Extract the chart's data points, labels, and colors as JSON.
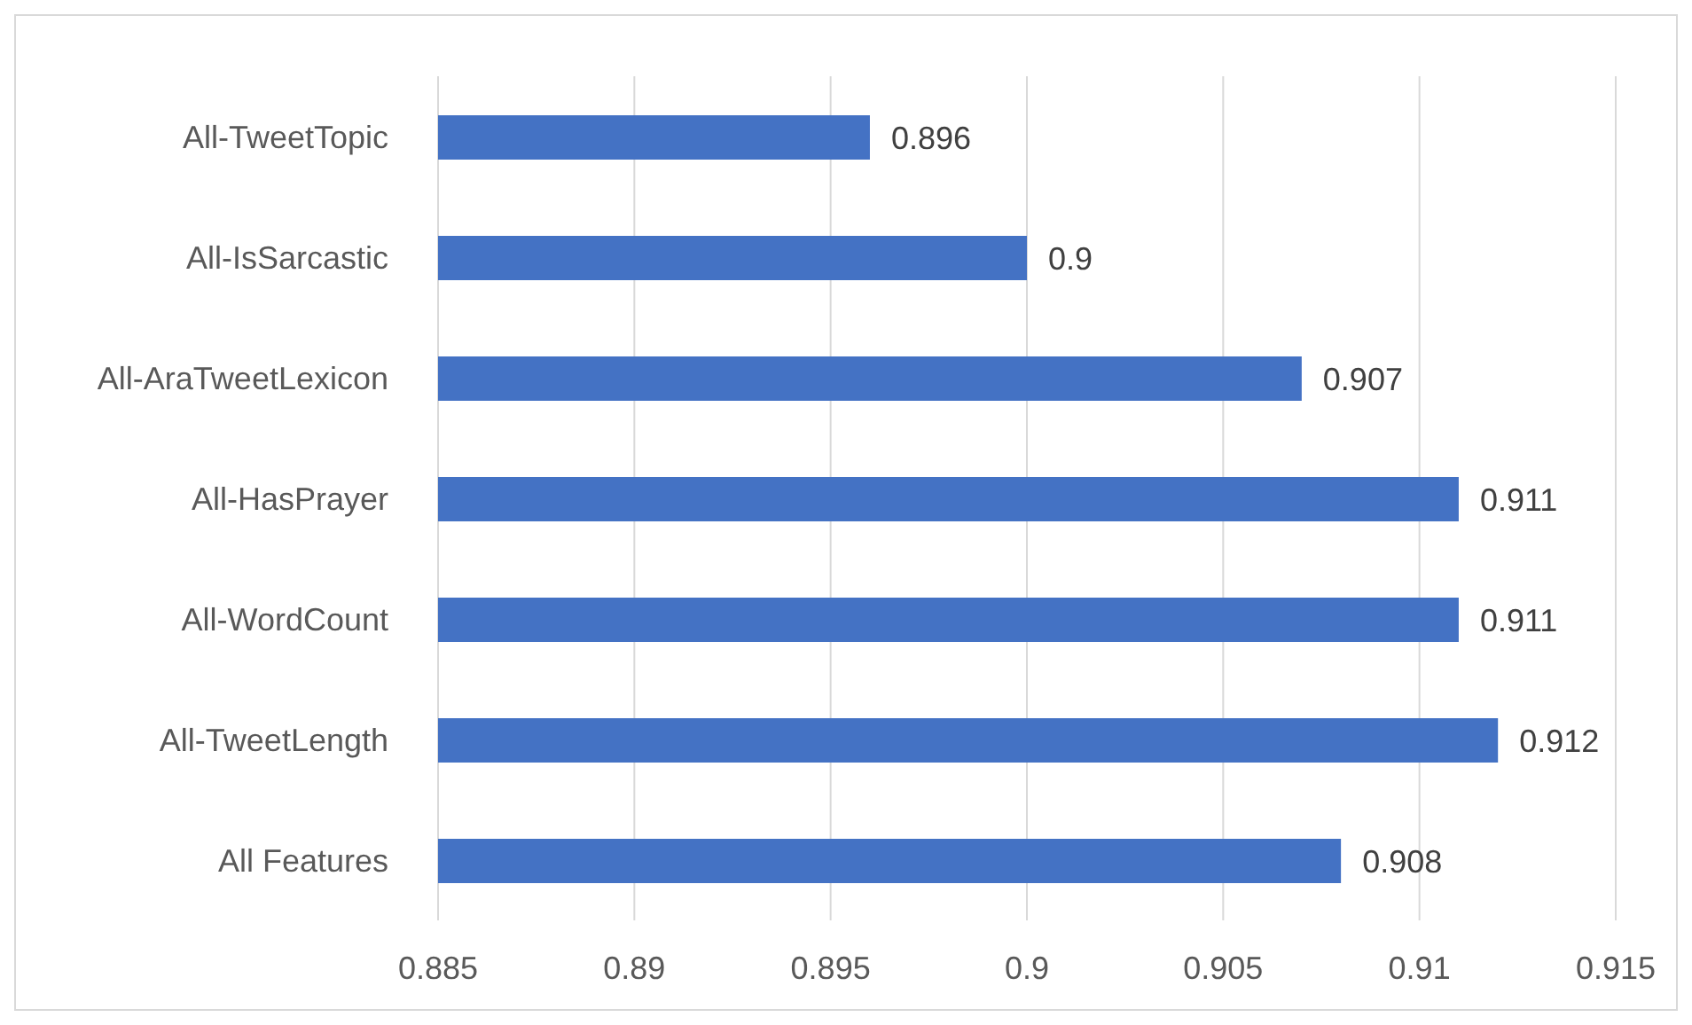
{
  "chart_data": {
    "type": "bar",
    "orientation": "horizontal",
    "categories": [
      "All-TweetTopic",
      "All-IsSarcastic",
      "All-AraTweetLexicon",
      "All-HasPrayer",
      "All-WordCount",
      "All-TweetLength",
      "All Features"
    ],
    "values": [
      0.896,
      0.9,
      0.907,
      0.911,
      0.911,
      0.912,
      0.908
    ],
    "color": "#4472c4",
    "xlim": [
      0.885,
      0.915
    ],
    "xticks": [
      0.885,
      0.89,
      0.895,
      0.9,
      0.905,
      0.91,
      0.915
    ],
    "grid": "x",
    "data_labels": true
  }
}
